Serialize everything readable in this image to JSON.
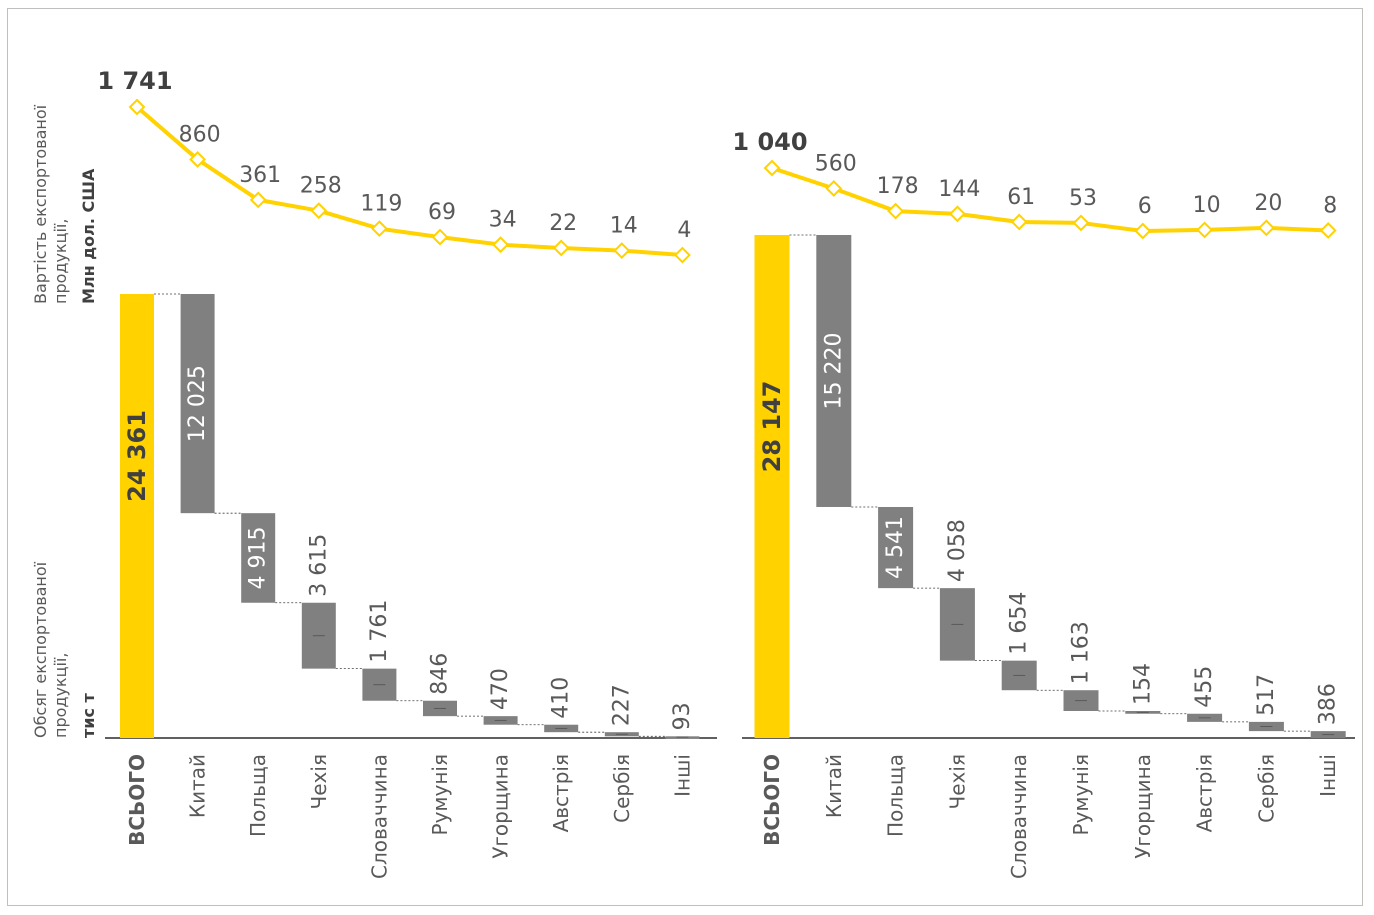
{
  "axis_titles": {
    "value_line1": "Вартість експортованої",
    "value_line2": "продукції,",
    "value_unit": "Млн дол. США",
    "volume_line1": "Обсяг експортованої",
    "volume_line2": "продукції,",
    "volume_unit": "тис т"
  },
  "colors": {
    "total_bar": "#FFD200",
    "country_bar": "#808080",
    "value_line": "#FFD200",
    "label_text": "#595959",
    "total_value_text": "#404040"
  },
  "chart_data": [
    {
      "type": "waterfall-with-line",
      "categories": [
        "ВСЬОГО",
        "Китай",
        "Польща",
        "Чехія",
        "Словаччина",
        "Румунія",
        "Угорщина",
        "Австрія",
        "Сербія",
        "Інші"
      ],
      "volume": {
        "total": 24361,
        "values": [
          24361,
          12025,
          4915,
          3615,
          1761,
          846,
          470,
          410,
          227,
          93
        ],
        "labels": [
          "24 361",
          "12 025",
          "4 915",
          "3 615",
          "1 761",
          "846",
          "470",
          "410",
          "227",
          "93"
        ]
      },
      "value_series": {
        "values": [
          1741,
          860,
          361,
          258,
          119,
          69,
          34,
          22,
          14,
          4
        ],
        "labels": [
          "1 741",
          "860",
          "361",
          "258",
          "119",
          "69",
          "34",
          "22",
          "14",
          "4"
        ]
      }
    },
    {
      "type": "waterfall-with-line",
      "categories": [
        "ВСЬОГО",
        "Китай",
        "Польща",
        "Чехія",
        "Словаччина",
        "Румунія",
        "Угорщина",
        "Австрія",
        "Сербія",
        "Інші"
      ],
      "volume": {
        "total": 28147,
        "values": [
          28147,
          15220,
          4541,
          4058,
          1654,
          1163,
          154,
          455,
          517,
          386
        ],
        "labels": [
          "28 147",
          "15 220",
          "4 541",
          "4 058",
          "1 654",
          "1 163",
          "154",
          "455",
          "517",
          "386"
        ]
      },
      "value_series": {
        "values": [
          1040,
          560,
          178,
          144,
          61,
          53,
          6,
          10,
          20,
          8
        ],
        "labels": [
          "1 040",
          "560",
          "178",
          "144",
          "61",
          "53",
          "6",
          "10",
          "20",
          "8"
        ]
      }
    }
  ]
}
